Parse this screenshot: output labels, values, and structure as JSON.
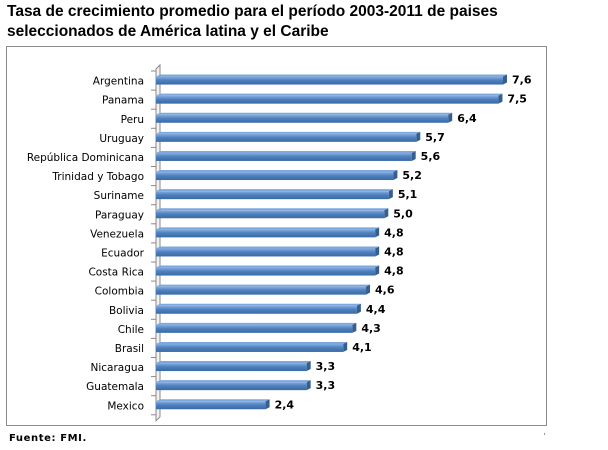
{
  "title_line1": "Tasa de crecimiento promedio para el período 2003-2011 de paises",
  "title_line2": "seleccionados de América latina y el Caribe",
  "source": "Fuente: FMI.",
  "colors": {
    "bar_top": "#7ea7dd",
    "bar_face": "#4f81bd",
    "bar_bottom": "#2f5a8f",
    "bar_end": "#365f91",
    "axis": "#888888"
  },
  "chart_data": {
    "type": "bar",
    "orientation": "horizontal",
    "title": "Tasa de crecimiento promedio para el período 2003-2011 de paises seleccionados de América latina y el Caribe",
    "categories": [
      "Argentina",
      "Panama",
      "Peru",
      "Uruguay",
      "República Dominicana",
      "Trinidad y Tobago",
      "Suriname",
      "Paraguay",
      "Venezuela",
      "Ecuador",
      "Costa Rica",
      "Colombia",
      "Bolivia",
      "Chile",
      "Brasil",
      "Nicaragua",
      "Guatemala",
      "Mexico"
    ],
    "values": [
      7.6,
      7.5,
      6.4,
      5.7,
      5.6,
      5.2,
      5.1,
      5.0,
      4.8,
      4.8,
      4.8,
      4.6,
      4.4,
      4.3,
      4.1,
      3.3,
      3.3,
      2.4
    ],
    "value_labels": [
      "7,6",
      "7,5",
      "6,4",
      "5,7",
      "5,6",
      "5,2",
      "5,1",
      "5,0",
      "4,8",
      "4,8",
      "4,8",
      "4,6",
      "4,4",
      "4,3",
      "4,1",
      "3,3",
      "3,3",
      "2,4"
    ],
    "xlim": [
      0,
      8
    ],
    "xlabel": "",
    "ylabel": "",
    "gridlines": false,
    "legend": "none"
  }
}
